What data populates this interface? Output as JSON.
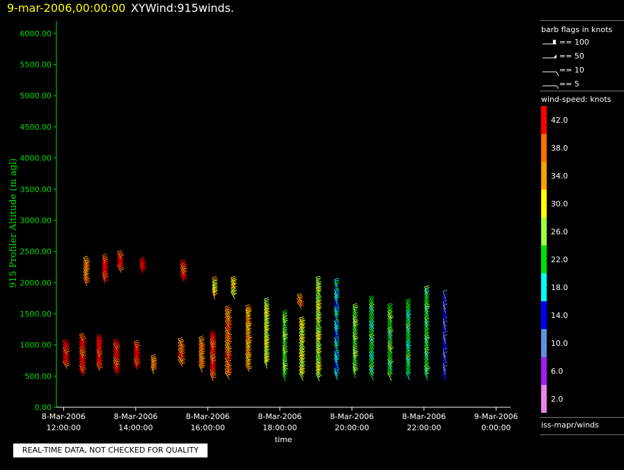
{
  "header": {
    "date": "9-mar-2006,00:00:00",
    "title": "XYWind:915winds."
  },
  "legend": {
    "barb_title": "barb flags in knots",
    "barb_items": [
      "== 100",
      "== 50",
      "== 10",
      "== 5"
    ],
    "speed_title": "wind-speed: knots",
    "source": "iss-mapr/winds",
    "colorbar": [
      {
        "color": "#ff0000",
        "label": "42.0"
      },
      {
        "color": "#ff6e00",
        "label": "38.0"
      },
      {
        "color": "#ffa000",
        "label": "34.0"
      },
      {
        "color": "#ffff00",
        "label": "30.0"
      },
      {
        "color": "#a0ff40",
        "label": "26.0"
      },
      {
        "color": "#00e000",
        "label": "22.0"
      },
      {
        "color": "#00ffff",
        "label": "18.0"
      },
      {
        "color": "#0000ff",
        "label": "14.0"
      },
      {
        "color": "#6090e0",
        "label": "10.0"
      },
      {
        "color": "#a020f0",
        "label": "6.0"
      },
      {
        "color": "#ee82ee",
        "label": "2.0"
      }
    ]
  },
  "notice": "REAL-TIME DATA, NOT CHECKED FOR QUALITY",
  "chart_data": {
    "type": "wind-barb time-height",
    "ylabel": "915 Profiler Altitude (m agl)",
    "xlabel": "time",
    "ylim": [
      0,
      6200
    ],
    "yticks": [
      "0.00",
      "500.00",
      "1000.00",
      "1500.00",
      "2000.00",
      "2500.00",
      "3000.00",
      "3500.00",
      "4000.00",
      "4500.00",
      "5000.00",
      "5500.00",
      "6000.00"
    ],
    "xticks": [
      {
        "line1": "8-Mar-2006",
        "line2": "12:00:00"
      },
      {
        "line1": "8-Mar-2006",
        "line2": "14:00:00"
      },
      {
        "line1": "8-Mar-2006",
        "line2": "16:00:00"
      },
      {
        "line1": "8-Mar-2006",
        "line2": "18:00:00"
      },
      {
        "line1": "8-Mar-2006",
        "line2": "20:00:00"
      },
      {
        "line1": "8-Mar-2006",
        "line2": "22:00:00"
      },
      {
        "line1": "9-Mar-2006",
        "line2": "0:00:00"
      }
    ],
    "xlim_hours": [
      11.8,
      24.4
    ],
    "speed_colors": [
      "#ee82ee",
      "#a020f0",
      "#6090e0",
      "#0000ff",
      "#00ffff",
      "#00e000",
      "#a0ff40",
      "#ffff00",
      "#ffa000",
      "#ff6e00",
      "#ff0000"
    ],
    "profiles": [
      {
        "hour": 12.1,
        "low": 620,
        "high": 1000,
        "speed": 42
      },
      {
        "hour": 12.55,
        "low": 500,
        "high": 1050,
        "speed": 41
      },
      {
        "hour": 12.65,
        "low": 1950,
        "high": 2330,
        "speed": 36
      },
      {
        "hour": 13.0,
        "low": 580,
        "high": 1030,
        "speed": 42
      },
      {
        "hour": 13.15,
        "low": 1980,
        "high": 2320,
        "speed": 42
      },
      {
        "hour": 13.5,
        "low": 520,
        "high": 1000,
        "speed": 41
      },
      {
        "hour": 13.6,
        "low": 2160,
        "high": 2420,
        "speed": 42
      },
      {
        "hour": 14.05,
        "low": 600,
        "high": 980,
        "speed": 42
      },
      {
        "hour": 14.2,
        "low": 2150,
        "high": 2300,
        "speed": 42
      },
      {
        "hour": 14.5,
        "low": 530,
        "high": 740,
        "speed": 36
      },
      {
        "hour": 15.3,
        "low": 650,
        "high": 1000,
        "speed": 38
      },
      {
        "hour": 15.35,
        "low": 2010,
        "high": 2240,
        "speed": 41
      },
      {
        "hour": 15.85,
        "low": 560,
        "high": 1040,
        "speed": 36
      },
      {
        "hour": 16.15,
        "low": 420,
        "high": 1110,
        "speed": 40
      },
      {
        "hour": 16.2,
        "low": 1730,
        "high": 1980,
        "speed": 31
      },
      {
        "hour": 16.6,
        "low": 450,
        "high": 1530,
        "speed": 37
      },
      {
        "hour": 16.75,
        "low": 1740,
        "high": 1980,
        "speed": 30
      },
      {
        "hour": 17.15,
        "low": 570,
        "high": 1550,
        "speed": 34
      },
      {
        "hour": 17.65,
        "low": 620,
        "high": 1640,
        "speed": 28
      },
      {
        "hour": 18.15,
        "low": 420,
        "high": 1440,
        "speed": 24
      },
      {
        "hour": 18.6,
        "low": 1580,
        "high": 1700,
        "speed": 36
      },
      {
        "hour": 18.65,
        "low": 430,
        "high": 1330,
        "speed": 28
      },
      {
        "hour": 19.1,
        "low": 420,
        "high": 2010,
        "speed": 27
      },
      {
        "hour": 19.6,
        "low": 440,
        "high": 1960,
        "speed": 17
      },
      {
        "hour": 20.1,
        "low": 470,
        "high": 1530,
        "speed": 24
      },
      {
        "hour": 20.6,
        "low": 440,
        "high": 1700,
        "speed": 21
      },
      {
        "hour": 21.1,
        "low": 430,
        "high": 1570,
        "speed": 23
      },
      {
        "hour": 21.6,
        "low": 440,
        "high": 1620,
        "speed": 21
      },
      {
        "hour": 22.1,
        "low": 430,
        "high": 1840,
        "speed": 22
      },
      {
        "hour": 22.6,
        "low": 410,
        "high": 1730,
        "speed": 12
      }
    ]
  }
}
